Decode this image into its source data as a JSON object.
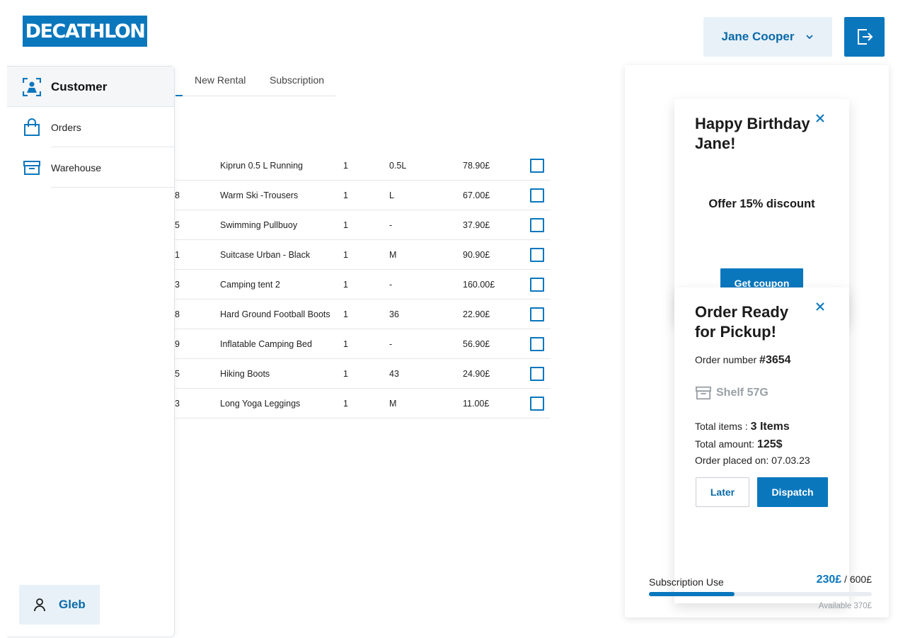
{
  "header": {
    "logo_text": "DECATHLON",
    "user_name": "Jane Cooper"
  },
  "sidebar": {
    "items": [
      {
        "label": "Customer",
        "icon": "customer-scan-icon",
        "active": true
      },
      {
        "label": "Orders",
        "icon": "shopping-bag-icon",
        "active": false
      },
      {
        "label": "Warehouse",
        "icon": "warehouse-icon",
        "active": false
      }
    ],
    "user": {
      "label": "Gleb",
      "icon": "user-icon"
    }
  },
  "tabs": [
    {
      "label": "New Rental"
    },
    {
      "label": "Subscription"
    }
  ],
  "table": {
    "rows": [
      {
        "id": "",
        "name": "Kiprun 0.5 L Running",
        "qty": "1",
        "size": "0.5L",
        "price": "78.90£"
      },
      {
        "id": "8",
        "name": "Warm Ski -Trousers",
        "qty": "1",
        "size": "L",
        "price": "67.00£"
      },
      {
        "id": "5",
        "name": "Swimming Pullbuoy",
        "qty": "1",
        "size": "-",
        "price": "37.90£"
      },
      {
        "id": "1",
        "name": "Suitcase Urban - Black",
        "qty": "1",
        "size": "M",
        "price": "90.90£"
      },
      {
        "id": "3",
        "name": "Camping tent 2",
        "qty": "1",
        "size": " -",
        "price": "160.00£"
      },
      {
        "id": "8",
        "name": "Hard Ground Football Boots",
        "qty": "1",
        "size": "36",
        "price": "22.90£"
      },
      {
        "id": "9",
        "name": "Inflatable Camping Bed",
        "qty": "1",
        "size": "-",
        "price": "56.90£"
      },
      {
        "id": "5",
        "name": "Hiking Boots",
        "qty": "1",
        "size": "43",
        "price": "24.90£"
      },
      {
        "id": "3",
        "name": "Long Yoga Leggings",
        "qty": "1",
        "size": "M",
        "price": "11.00£"
      }
    ]
  },
  "birthday_card": {
    "title_line1": "Happy Birthday",
    "title_line2": "Jane!",
    "offer": "Offer 15% discount",
    "button": "Get coupon"
  },
  "pickup_card": {
    "title_line1": "Order Ready",
    "title_line2": "for Pickup!",
    "order_label": "Order number ",
    "order_number": "#3654",
    "shelf": "Shelf 57G",
    "items_label": "Total items : ",
    "items_value": "3 Items",
    "amount_label": "Total amount: ",
    "amount_value": "125$",
    "placed_label": "Order placed on: ",
    "placed_value": "07.03.23",
    "later_button": "Later",
    "dispatch_button": "Dispatch"
  },
  "subscription": {
    "label": "Subscription Use",
    "used": "230£",
    "separator": " / ",
    "total": "600£",
    "available": "Available 370£",
    "used_fraction": 0.383
  },
  "colors": {
    "brand": "#0a77bd",
    "brand_light": "#e8f1f8"
  }
}
